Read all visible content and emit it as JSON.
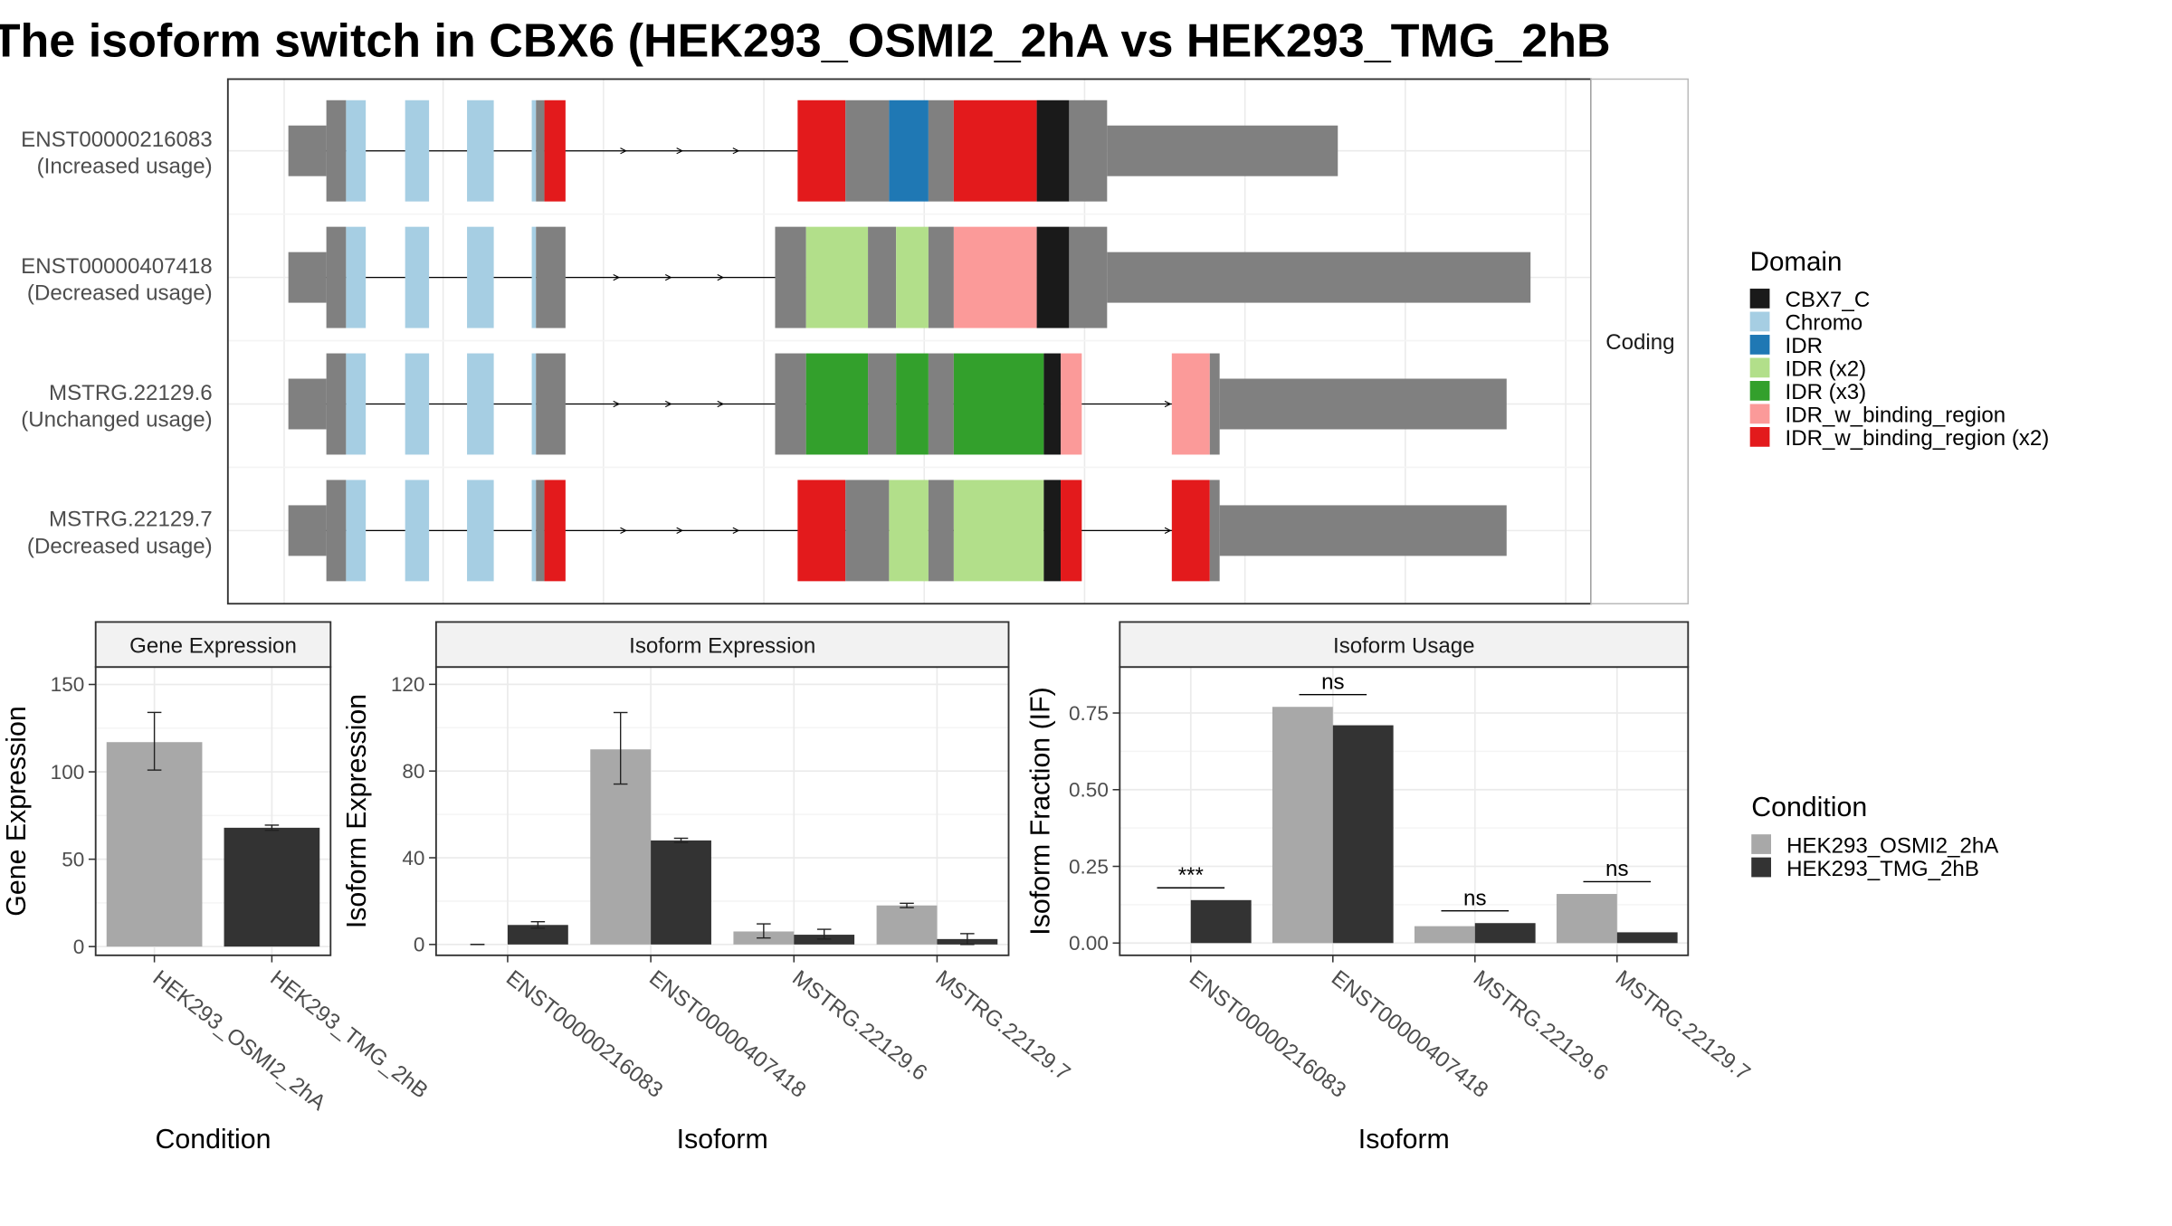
{
  "title": "The isoform switch in CBX6 (HEK293_OSMI2_2hA vs HEK293_TMG_2hB",
  "colors": {
    "CBX7_C": "#1a1a1a",
    "Chromo": "#a6cee3",
    "IDR": "#1f78b4",
    "IDR (x2)": "#b2df8a",
    "IDR (x3)": "#33a02c",
    "IDR_w_binding_region": "#fb9a99",
    "IDR_w_binding_region (x2)": "#e31a1c",
    "noncoding_block": "#808080",
    "cond_A": "#a8a8a8",
    "cond_B": "#333333",
    "grid": "#ebebeb",
    "strip": "#f2f2f2",
    "axis_text": "#4d4d4d"
  },
  "transcript_panel": {
    "facet_label": "Coding",
    "legend_title": "Domain",
    "legend_items": [
      "CBX7_C",
      "Chromo",
      "IDR",
      "IDR (x2)",
      "IDR (x3)",
      "IDR_w_binding_region",
      "IDR_w_binding_region (x2)"
    ],
    "transcripts": [
      {
        "id": "ENST00000216083",
        "usage": "(Increased usage)",
        "line": [
          215,
          575
        ],
        "arrows": [
          445,
          485,
          525
        ],
        "blocks": [
          [
            205,
            232,
            "nc",
            "utr"
          ],
          [
            232,
            246,
            "nc"
          ],
          [
            246,
            260,
            "Chromo"
          ],
          [
            288,
            305,
            "Chromo"
          ],
          [
            332,
            351,
            "Chromo"
          ],
          [
            378,
            381,
            "Chromo"
          ],
          [
            381,
            387,
            "nc"
          ],
          [
            387,
            402,
            "IDR_w_binding_region (x2)"
          ],
          [
            567,
            601,
            "IDR_w_binding_region (x2)"
          ],
          [
            601,
            632,
            "nc"
          ],
          [
            632,
            660,
            "IDR"
          ],
          [
            660,
            678,
            "nc"
          ],
          [
            678,
            737,
            "IDR_w_binding_region (x2)"
          ],
          [
            737,
            760,
            "CBX7_C"
          ],
          [
            760,
            787,
            "nc"
          ],
          [
            787,
            951,
            "nc",
            "utr"
          ]
        ]
      },
      {
        "id": "ENST00000407418",
        "usage": "(Decreased usage)",
        "line": [
          215,
          560
        ],
        "arrows": [
          440,
          477,
          514
        ],
        "blocks": [
          [
            205,
            232,
            "nc",
            "utr"
          ],
          [
            232,
            246,
            "nc"
          ],
          [
            246,
            260,
            "Chromo"
          ],
          [
            288,
            305,
            "Chromo"
          ],
          [
            332,
            351,
            "Chromo"
          ],
          [
            378,
            381,
            "Chromo"
          ],
          [
            381,
            402,
            "nc"
          ],
          [
            551,
            573,
            "nc"
          ],
          [
            573,
            617,
            "IDR (x2)"
          ],
          [
            617,
            637,
            "nc"
          ],
          [
            637,
            660,
            "IDR (x2)"
          ],
          [
            660,
            678,
            "nc"
          ],
          [
            678,
            737,
            "IDR_w_binding_region"
          ],
          [
            737,
            760,
            "CBX7_C"
          ],
          [
            760,
            787,
            "nc"
          ],
          [
            787,
            1088,
            "nc",
            "utr"
          ]
        ]
      },
      {
        "id": "MSTRG.22129.6",
        "usage": "(Unchanged usage)",
        "line": [
          215,
          838
        ],
        "arrows": [
          440,
          477,
          514,
          832
        ],
        "blocks": [
          [
            205,
            232,
            "nc",
            "utr"
          ],
          [
            232,
            246,
            "nc"
          ],
          [
            246,
            260,
            "Chromo"
          ],
          [
            288,
            305,
            "Chromo"
          ],
          [
            332,
            351,
            "Chromo"
          ],
          [
            378,
            381,
            "Chromo"
          ],
          [
            381,
            402,
            "nc"
          ],
          [
            551,
            573,
            "nc"
          ],
          [
            573,
            617,
            "IDR (x3)"
          ],
          [
            617,
            637,
            "nc"
          ],
          [
            637,
            660,
            "IDR (x3)"
          ],
          [
            660,
            678,
            "nc"
          ],
          [
            678,
            742,
            "IDR (x3)"
          ],
          [
            742,
            754,
            "CBX7_C"
          ],
          [
            754,
            769,
            "IDR_w_binding_region"
          ],
          [
            833,
            860,
            "IDR_w_binding_region"
          ],
          [
            860,
            867,
            "nc"
          ],
          [
            867,
            1071,
            "nc",
            "utr"
          ]
        ]
      },
      {
        "id": "MSTRG.22129.7",
        "usage": "(Decreased usage)",
        "line": [
          215,
          838
        ],
        "arrows": [
          445,
          485,
          525,
          832
        ],
        "blocks": [
          [
            205,
            232,
            "nc",
            "utr"
          ],
          [
            232,
            246,
            "nc"
          ],
          [
            246,
            260,
            "Chromo"
          ],
          [
            288,
            305,
            "Chromo"
          ],
          [
            332,
            351,
            "Chromo"
          ],
          [
            378,
            381,
            "Chromo"
          ],
          [
            381,
            387,
            "nc"
          ],
          [
            387,
            402,
            "IDR_w_binding_region (x2)"
          ],
          [
            567,
            601,
            "IDR_w_binding_region (x2)"
          ],
          [
            601,
            632,
            "nc"
          ],
          [
            632,
            660,
            "IDR (x2)"
          ],
          [
            660,
            678,
            "nc"
          ],
          [
            678,
            742,
            "IDR (x2)"
          ],
          [
            742,
            754,
            "CBX7_C"
          ],
          [
            754,
            769,
            "IDR_w_binding_region (x2)"
          ],
          [
            833,
            860,
            "IDR_w_binding_region (x2)"
          ],
          [
            860,
            867,
            "nc"
          ],
          [
            867,
            1071,
            "nc",
            "utr"
          ]
        ]
      }
    ]
  },
  "chart_data": [
    {
      "type": "bar",
      "title": "Gene Expression",
      "xlabel": "Condition",
      "ylabel": "Gene Expression",
      "ylim": [
        -5,
        160
      ],
      "yticks": [
        0,
        50,
        100,
        150
      ],
      "categories": [
        "HEK293_OSMI2_2hA",
        "HEK293_TMG_2hB"
      ],
      "series": [
        {
          "name": "HEK293_OSMI2_2hA",
          "values": [
            117,
            null
          ],
          "err_low": [
            101,
            null
          ],
          "err_high": [
            134,
            null
          ]
        },
        {
          "name": "HEK293_TMG_2hB",
          "values": [
            null,
            68
          ],
          "err_low": [
            null,
            66.5
          ],
          "err_high": [
            null,
            69.5
          ]
        }
      ]
    },
    {
      "type": "bar",
      "title": "Isoform Expression",
      "xlabel": "Isoform",
      "ylabel": "Isoform Expression",
      "ylim": [
        -5,
        128
      ],
      "yticks": [
        0,
        40,
        80,
        120
      ],
      "categories": [
        "ENST00000216083",
        "ENST00000407418",
        "MSTRG.22129.6",
        "MSTRG.22129.7"
      ],
      "series": [
        {
          "name": "HEK293_OSMI2_2hA",
          "values": [
            0,
            90,
            6,
            18
          ],
          "err_low": [
            0,
            74,
            3,
            17
          ],
          "err_high": [
            0,
            107,
            9.5,
            19
          ]
        },
        {
          "name": "HEK293_TMG_2hB",
          "values": [
            9,
            48,
            4.5,
            2.5
          ],
          "err_low": [
            7.5,
            47,
            2.5,
            0
          ],
          "err_high": [
            10.5,
            49,
            7,
            5
          ]
        }
      ]
    },
    {
      "type": "bar",
      "title": "Isoform Usage",
      "xlabel": "Isoform",
      "ylabel": "Isoform Fraction (IF)",
      "ylim": [
        -0.04,
        0.9
      ],
      "yticks": [
        0,
        0.25,
        0.5,
        0.75
      ],
      "ytick_labels": [
        "0.00",
        "0.25",
        "0.50",
        "0.75"
      ],
      "categories": [
        "ENST00000216083",
        "ENST00000407418",
        "MSTRG.22129.6",
        "MSTRG.22129.7"
      ],
      "series": [
        {
          "name": "HEK293_OSMI2_2hA",
          "values": [
            0.0,
            0.77,
            0.055,
            0.16
          ]
        },
        {
          "name": "HEK293_TMG_2hB",
          "values": [
            0.14,
            0.71,
            0.065,
            0.035
          ]
        }
      ],
      "significance": [
        "***",
        "ns",
        "ns",
        "ns"
      ],
      "significance_y": [
        0.18,
        0.81,
        0.105,
        0.2
      ]
    }
  ],
  "condition_legend": {
    "title": "Condition",
    "items": [
      "HEK293_OSMI2_2hA",
      "HEK293_TMG_2hB"
    ]
  }
}
